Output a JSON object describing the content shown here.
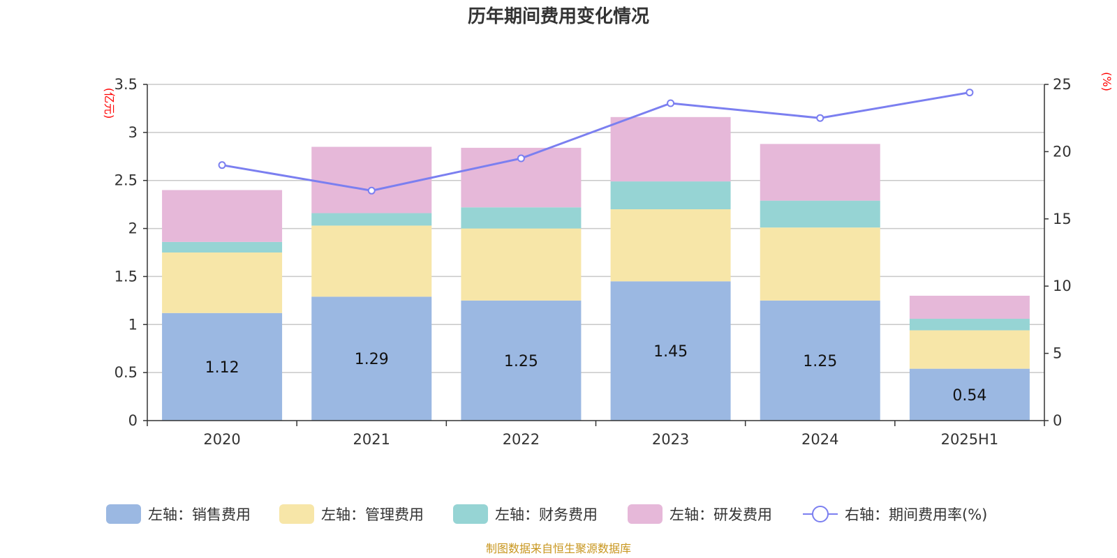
{
  "title": "历年期间费用变化情况",
  "source": "制图数据来自恒生聚源数据库",
  "chart_data": {
    "type": "bar",
    "stacked": true,
    "categories": [
      "2020",
      "2021",
      "2022",
      "2023",
      "2024",
      "2025H1"
    ],
    "left_axis": {
      "unit": "(亿元)",
      "ylim": [
        0,
        3.5
      ],
      "ticks": [
        0,
        0.5,
        1,
        1.5,
        2,
        2.5,
        3,
        3.5
      ],
      "tick_labels": [
        "0",
        "0.5",
        "1",
        "1.5",
        "2",
        "2.5",
        "3",
        "3.5"
      ]
    },
    "right_axis": {
      "unit": "(%)",
      "ylim": [
        0,
        25
      ],
      "ticks": [
        0,
        5,
        10,
        15,
        20,
        25
      ],
      "tick_labels": [
        "0",
        "5",
        "10",
        "15",
        "20",
        "25"
      ]
    },
    "grid": true,
    "legend_position": "bottom",
    "series": [
      {
        "name": "左轴：销售费用",
        "type": "bar",
        "axis": "left",
        "color": "#9bb8e2",
        "values": [
          1.12,
          1.29,
          1.25,
          1.45,
          1.25,
          0.54
        ],
        "data_labels": [
          "1.12",
          "1.29",
          "1.25",
          "1.45",
          "1.25",
          "0.54"
        ]
      },
      {
        "name": "左轴：管理费用",
        "type": "bar",
        "axis": "left",
        "color": "#f7e6a8",
        "values": [
          0.63,
          0.74,
          0.75,
          0.75,
          0.76,
          0.4
        ]
      },
      {
        "name": "左轴：财务费用",
        "type": "bar",
        "axis": "left",
        "color": "#96d4d4",
        "values": [
          0.11,
          0.13,
          0.22,
          0.29,
          0.28,
          0.12
        ]
      },
      {
        "name": "左轴：研发费用",
        "type": "bar",
        "axis": "left",
        "color": "#e6b8d9",
        "values": [
          0.54,
          0.69,
          0.62,
          0.67,
          0.59,
          0.24
        ]
      },
      {
        "name": "右轴：期间费用率(%)",
        "type": "line",
        "axis": "right",
        "color": "#7b7ff0",
        "values": [
          19.0,
          17.1,
          19.5,
          23.6,
          22.5,
          24.4
        ]
      }
    ]
  }
}
